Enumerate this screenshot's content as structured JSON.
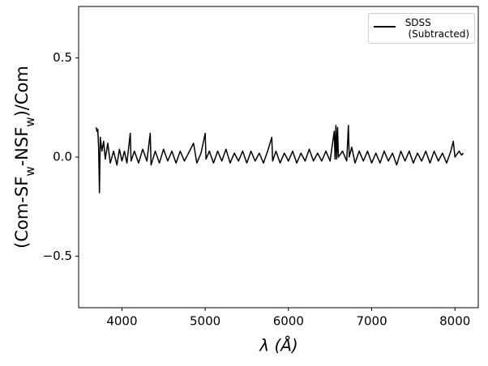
{
  "chart_data": {
    "type": "line",
    "xlabel": "λ (Å)",
    "ylabel": [
      {
        "text": "(Com-SF"
      },
      {
        "text": "w",
        "sub": true
      },
      {
        "text": "-NSF"
      },
      {
        "text": "w",
        "sub": true
      },
      {
        "text": ")/Com"
      }
    ],
    "x": [
      3690,
      3700,
      3710,
      3720,
      3730,
      3740,
      3760,
      3780,
      3800,
      3830,
      3860,
      3900,
      3940,
      3970,
      4000,
      4030,
      4060,
      4100,
      4110,
      4150,
      4200,
      4250,
      4300,
      4340,
      4350,
      4400,
      4450,
      4500,
      4550,
      4600,
      4650,
      4700,
      4750,
      4800,
      4860,
      4900,
      4950,
      5000,
      5010,
      5050,
      5100,
      5150,
      5200,
      5250,
      5300,
      5350,
      5400,
      5450,
      5500,
      5550,
      5600,
      5650,
      5700,
      5750,
      5800,
      5810,
      5850,
      5900,
      5950,
      6000,
      6050,
      6100,
      6150,
      6200,
      6250,
      6300,
      6350,
      6400,
      6450,
      6500,
      6550,
      6560,
      6570,
      6580,
      6590,
      6600,
      6650,
      6700,
      6720,
      6730,
      6760,
      6800,
      6850,
      6900,
      6950,
      7000,
      7050,
      7100,
      7150,
      7200,
      7250,
      7300,
      7350,
      7400,
      7450,
      7500,
      7550,
      7600,
      7650,
      7700,
      7750,
      7800,
      7850,
      7900,
      7950,
      7980,
      8000,
      8050,
      8080,
      8100
    ],
    "series": [
      {
        "name": "SDSS\n (Subtracted)",
        "color": "#000000",
        "values": [
          0.15,
          0.13,
          0.14,
          0.05,
          -0.18,
          0.1,
          0.03,
          0.08,
          -0.01,
          0.07,
          -0.03,
          0.03,
          -0.04,
          0.04,
          -0.02,
          0.03,
          -0.03,
          0.12,
          -0.02,
          0.03,
          -0.03,
          0.04,
          -0.02,
          0.12,
          -0.04,
          0.03,
          -0.03,
          0.04,
          -0.02,
          0.03,
          -0.03,
          0.03,
          -0.02,
          0.02,
          0.07,
          -0.03,
          0.02,
          0.12,
          -0.01,
          0.03,
          -0.03,
          0.03,
          -0.02,
          0.04,
          -0.03,
          0.02,
          -0.02,
          0.03,
          -0.03,
          0.03,
          -0.02,
          0.02,
          -0.03,
          0.03,
          0.1,
          -0.02,
          0.03,
          -0.03,
          0.02,
          -0.02,
          0.03,
          -0.03,
          0.02,
          -0.02,
          0.04,
          -0.02,
          0.02,
          -0.02,
          0.03,
          -0.02,
          0.13,
          -0.01,
          0.16,
          -0.01,
          0.15,
          0.0,
          0.03,
          -0.02,
          0.16,
          0.0,
          0.05,
          -0.03,
          0.03,
          -0.02,
          0.03,
          -0.03,
          0.02,
          -0.03,
          0.03,
          -0.02,
          0.02,
          -0.04,
          0.03,
          -0.02,
          0.03,
          -0.03,
          0.02,
          -0.02,
          0.03,
          -0.03,
          0.03,
          -0.02,
          0.02,
          -0.03,
          0.03,
          0.08,
          0.0,
          0.03,
          0.01,
          0.02
        ]
      }
    ],
    "xlim": [
      3480,
      8280
    ],
    "ylim": [
      -0.76,
      0.76
    ],
    "xticks": [
      4000,
      5000,
      6000,
      7000,
      8000
    ],
    "yticks": [
      {
        "value": -0.5,
        "label": "−0.5"
      },
      {
        "value": 0,
        "label": "0.0"
      },
      0.5
    ],
    "legend": "upper right"
  }
}
